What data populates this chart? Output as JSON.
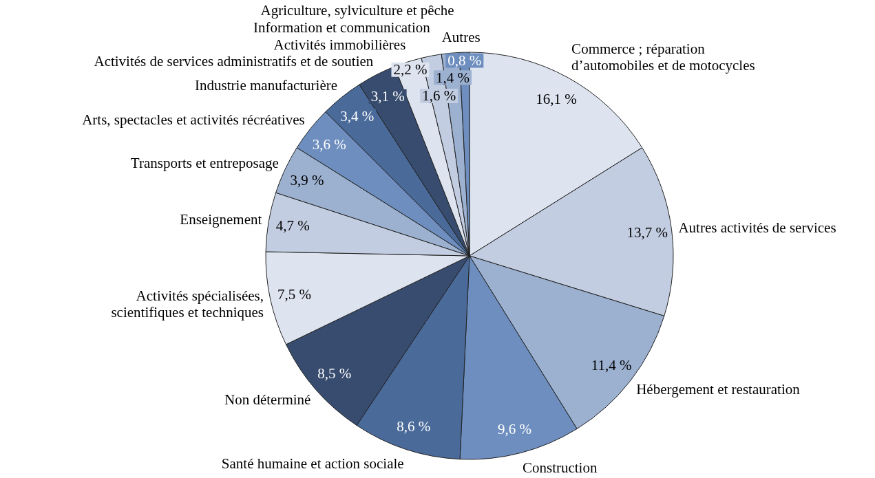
{
  "chart_data": {
    "type": "pie",
    "categories": [
      "Commerce ; réparation d’automobiles et de motocycles",
      "Autres activités de services",
      "Hébergement et restauration",
      "Construction",
      "Santé humaine et action sociale",
      "Non déterminé",
      "Activités spécialisées, scientifiques et techniques",
      "Enseignement",
      "Transports et entreposage",
      "Arts, spectacles et activités récréatives",
      "Industrie manufacturière",
      "Activités de services administratifs et de soutien",
      "Activités immobilières",
      "Information et communication",
      "Agriculture, sylviculture et pêche",
      "Autres"
    ],
    "values": [
      16.1,
      13.7,
      11.4,
      9.6,
      8.6,
      8.5,
      7.5,
      4.7,
      3.9,
      3.6,
      3.4,
      3.1,
      2.2,
      1.6,
      1.4,
      0.8
    ],
    "value_labels": [
      "16,1 %",
      "13,7 %",
      "11,4 %",
      "9,6 %",
      "8,6 %",
      "8,5 %",
      "7,5 %",
      "4,7 %",
      "3,9 %",
      "3,6 %",
      "3,4 %",
      "3,1 %",
      "2,2 %",
      "1,6 %",
      "1,4 %",
      "0,8 %"
    ],
    "colors": [
      "#dde3ef",
      "#c2cde1",
      "#9cb0d0",
      "#6d8ebe",
      "#4a6a9a",
      "#374c6e",
      "#dde3ef",
      "#c2cde1",
      "#9cb0d0",
      "#6d8ebe",
      "#4a6a9a",
      "#374c6e",
      "#dde3ef",
      "#c2cde1",
      "#9cb0d0",
      "#6d8ebe"
    ]
  }
}
